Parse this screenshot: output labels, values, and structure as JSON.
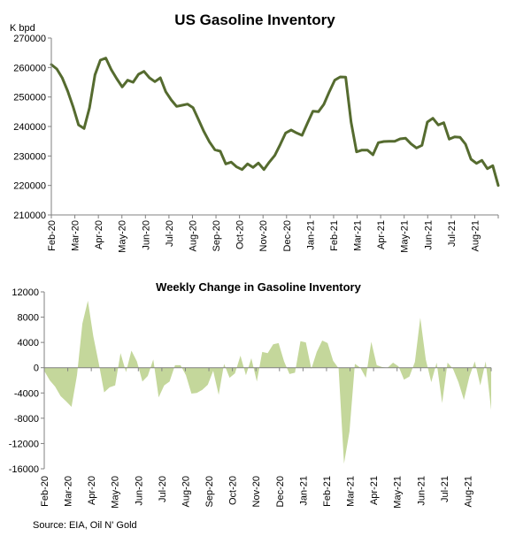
{
  "source": "Source: EIA, Oil N' Gold",
  "chart_data": [
    {
      "type": "line",
      "title": "US Gasoline Inventory",
      "ylabel": "K bpd",
      "ylim": [
        210000,
        270000
      ],
      "yticks": [
        210000,
        220000,
        230000,
        240000,
        250000,
        260000,
        270000
      ],
      "ytick_labels": [
        "210000",
        "220000",
        "230000",
        "240000",
        "250000",
        "260000",
        "270000"
      ],
      "xlabels": [
        "Feb-20",
        "Mar-20",
        "Apr-20",
        "May-20",
        "Jun-20",
        "Jul-20",
        "Aug-20",
        "Sep-20",
        "Oct-20",
        "Nov-20",
        "Dec-20",
        "Jan-21",
        "Feb-21",
        "Mar-21",
        "Apr-21",
        "May-21",
        "Jun-21",
        "Jul-21",
        "Aug-21"
      ],
      "grid": false,
      "colors": {
        "line": "#556b2f",
        "axis": "#808080"
      },
      "series": [
        {
          "name": "US Gasoline Inventory",
          "values": [
            261000,
            259500,
            256500,
            252000,
            246700,
            240500,
            239300,
            246300,
            257500,
            262500,
            263200,
            259300,
            256200,
            253400,
            255700,
            255000,
            257700,
            258700,
            256500,
            255200,
            256500,
            251800,
            249000,
            246800,
            247200,
            247600,
            246400,
            242300,
            238300,
            234800,
            232100,
            231600,
            227300,
            227900,
            226300,
            225400,
            227300,
            226100,
            227600,
            225400,
            227900,
            230200,
            233900,
            237800,
            238800,
            237800,
            237000,
            241200,
            245200,
            245000,
            247500,
            251800,
            255700,
            256800,
            256700,
            241500,
            231400,
            232000,
            232000,
            230400,
            234500,
            234900,
            235000,
            235000,
            235800,
            236000,
            234100,
            232700,
            233600,
            241500,
            242800,
            240500,
            241300,
            235700,
            236500,
            236300,
            234000,
            228900,
            227500,
            228500,
            225700,
            226700,
            220000
          ]
        }
      ]
    },
    {
      "type": "area",
      "title": "Weekly Change in Gasoline Inventory",
      "ylim": [
        -16000,
        12000
      ],
      "yticks": [
        -16000,
        -12000,
        -8000,
        -4000,
        0,
        4000,
        8000,
        12000
      ],
      "ytick_labels": [
        "-16000",
        "-12000",
        "-8000",
        "-4000",
        "0",
        "4000",
        "8000",
        "12000"
      ],
      "xlabels": [
        "Feb-20",
        "Mar-20",
        "Apr-20",
        "May-20",
        "Jun-20",
        "Jul-20",
        "Aug-20",
        "Sep-20",
        "Oct-20",
        "Nov-20",
        "Dec-20",
        "Jan-21",
        "Feb-21",
        "Mar-21",
        "Apr-21",
        "May-21",
        "Jun-21",
        "Jul-21",
        "Aug-21"
      ],
      "grid": false,
      "colors": {
        "fill": "#c4d79b",
        "axis": "#808080"
      },
      "series": [
        {
          "name": "Weekly Change",
          "values": [
            -500,
            -2000,
            -3000,
            -4500,
            -5300,
            -6200,
            -1200,
            7000,
            10600,
            5000,
            700,
            -3900,
            -3100,
            -2800,
            2300,
            -700,
            2700,
            1000,
            -2200,
            -1300,
            1300,
            -4700,
            -2800,
            -2200,
            400,
            400,
            -1200,
            -4100,
            -4000,
            -3500,
            -2700,
            -500,
            -4300,
            600,
            -1600,
            -900,
            1900,
            -1200,
            1500,
            -2200,
            2500,
            2300,
            3700,
            3900,
            1000,
            -1000,
            -800,
            4200,
            4000,
            -200,
            2500,
            4300,
            3900,
            1100,
            -100,
            -15200,
            -10100,
            600,
            0,
            -1600,
            4100,
            400,
            100,
            0,
            800,
            200,
            -1900,
            -1400,
            900,
            7900,
            1300,
            -2300,
            800,
            -5600,
            800,
            -200,
            -2300,
            -5100,
            -1400,
            1000,
            -2800,
            1000,
            -6700
          ]
        }
      ]
    }
  ]
}
